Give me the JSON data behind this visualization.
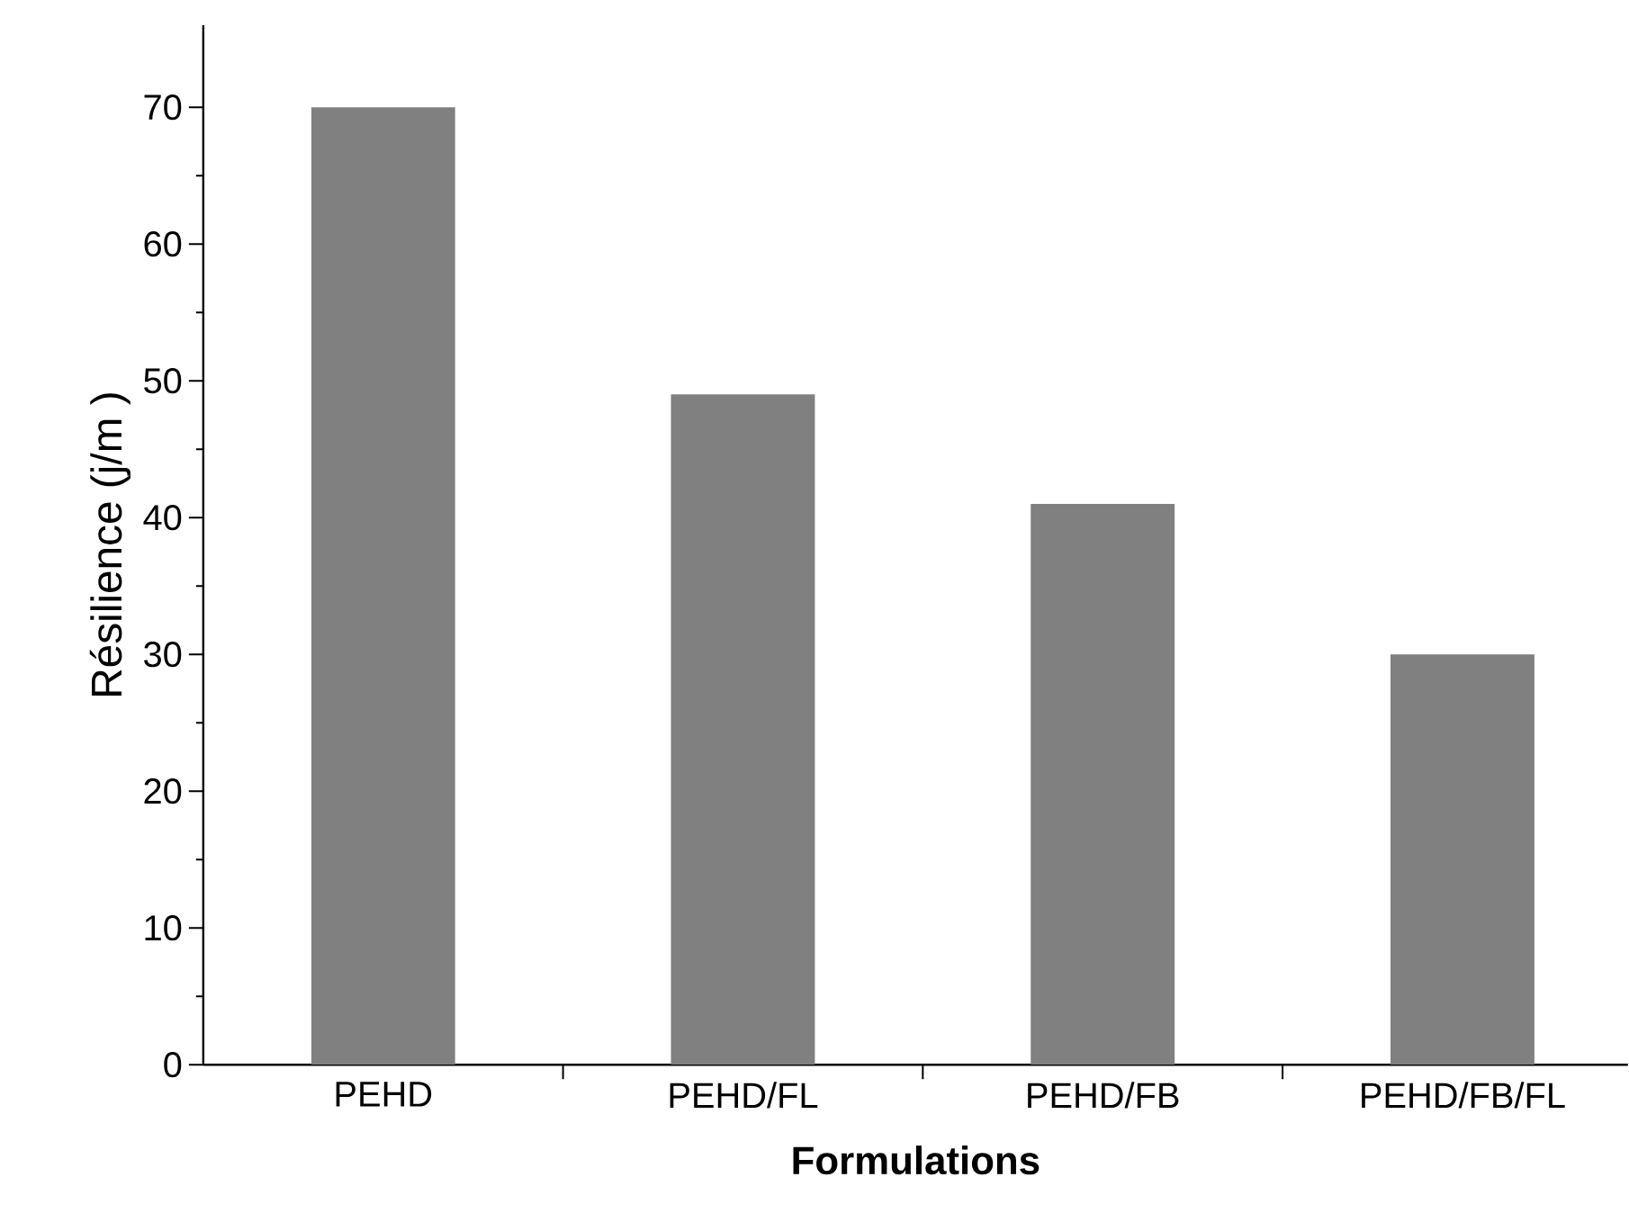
{
  "chart_data": {
    "type": "bar",
    "xlabel": "Formulations",
    "ylabel": "Résilience (j/m )",
    "categories": [
      "PEHD",
      "PEHD/FL",
      "PEHD/FB",
      "PEHD/FB/FL"
    ],
    "values": [
      70,
      49,
      41,
      30
    ],
    "color": "#808080",
    "ylim": [
      0,
      76
    ],
    "yticks": [
      0,
      10,
      20,
      30,
      40,
      50,
      60,
      70
    ]
  }
}
